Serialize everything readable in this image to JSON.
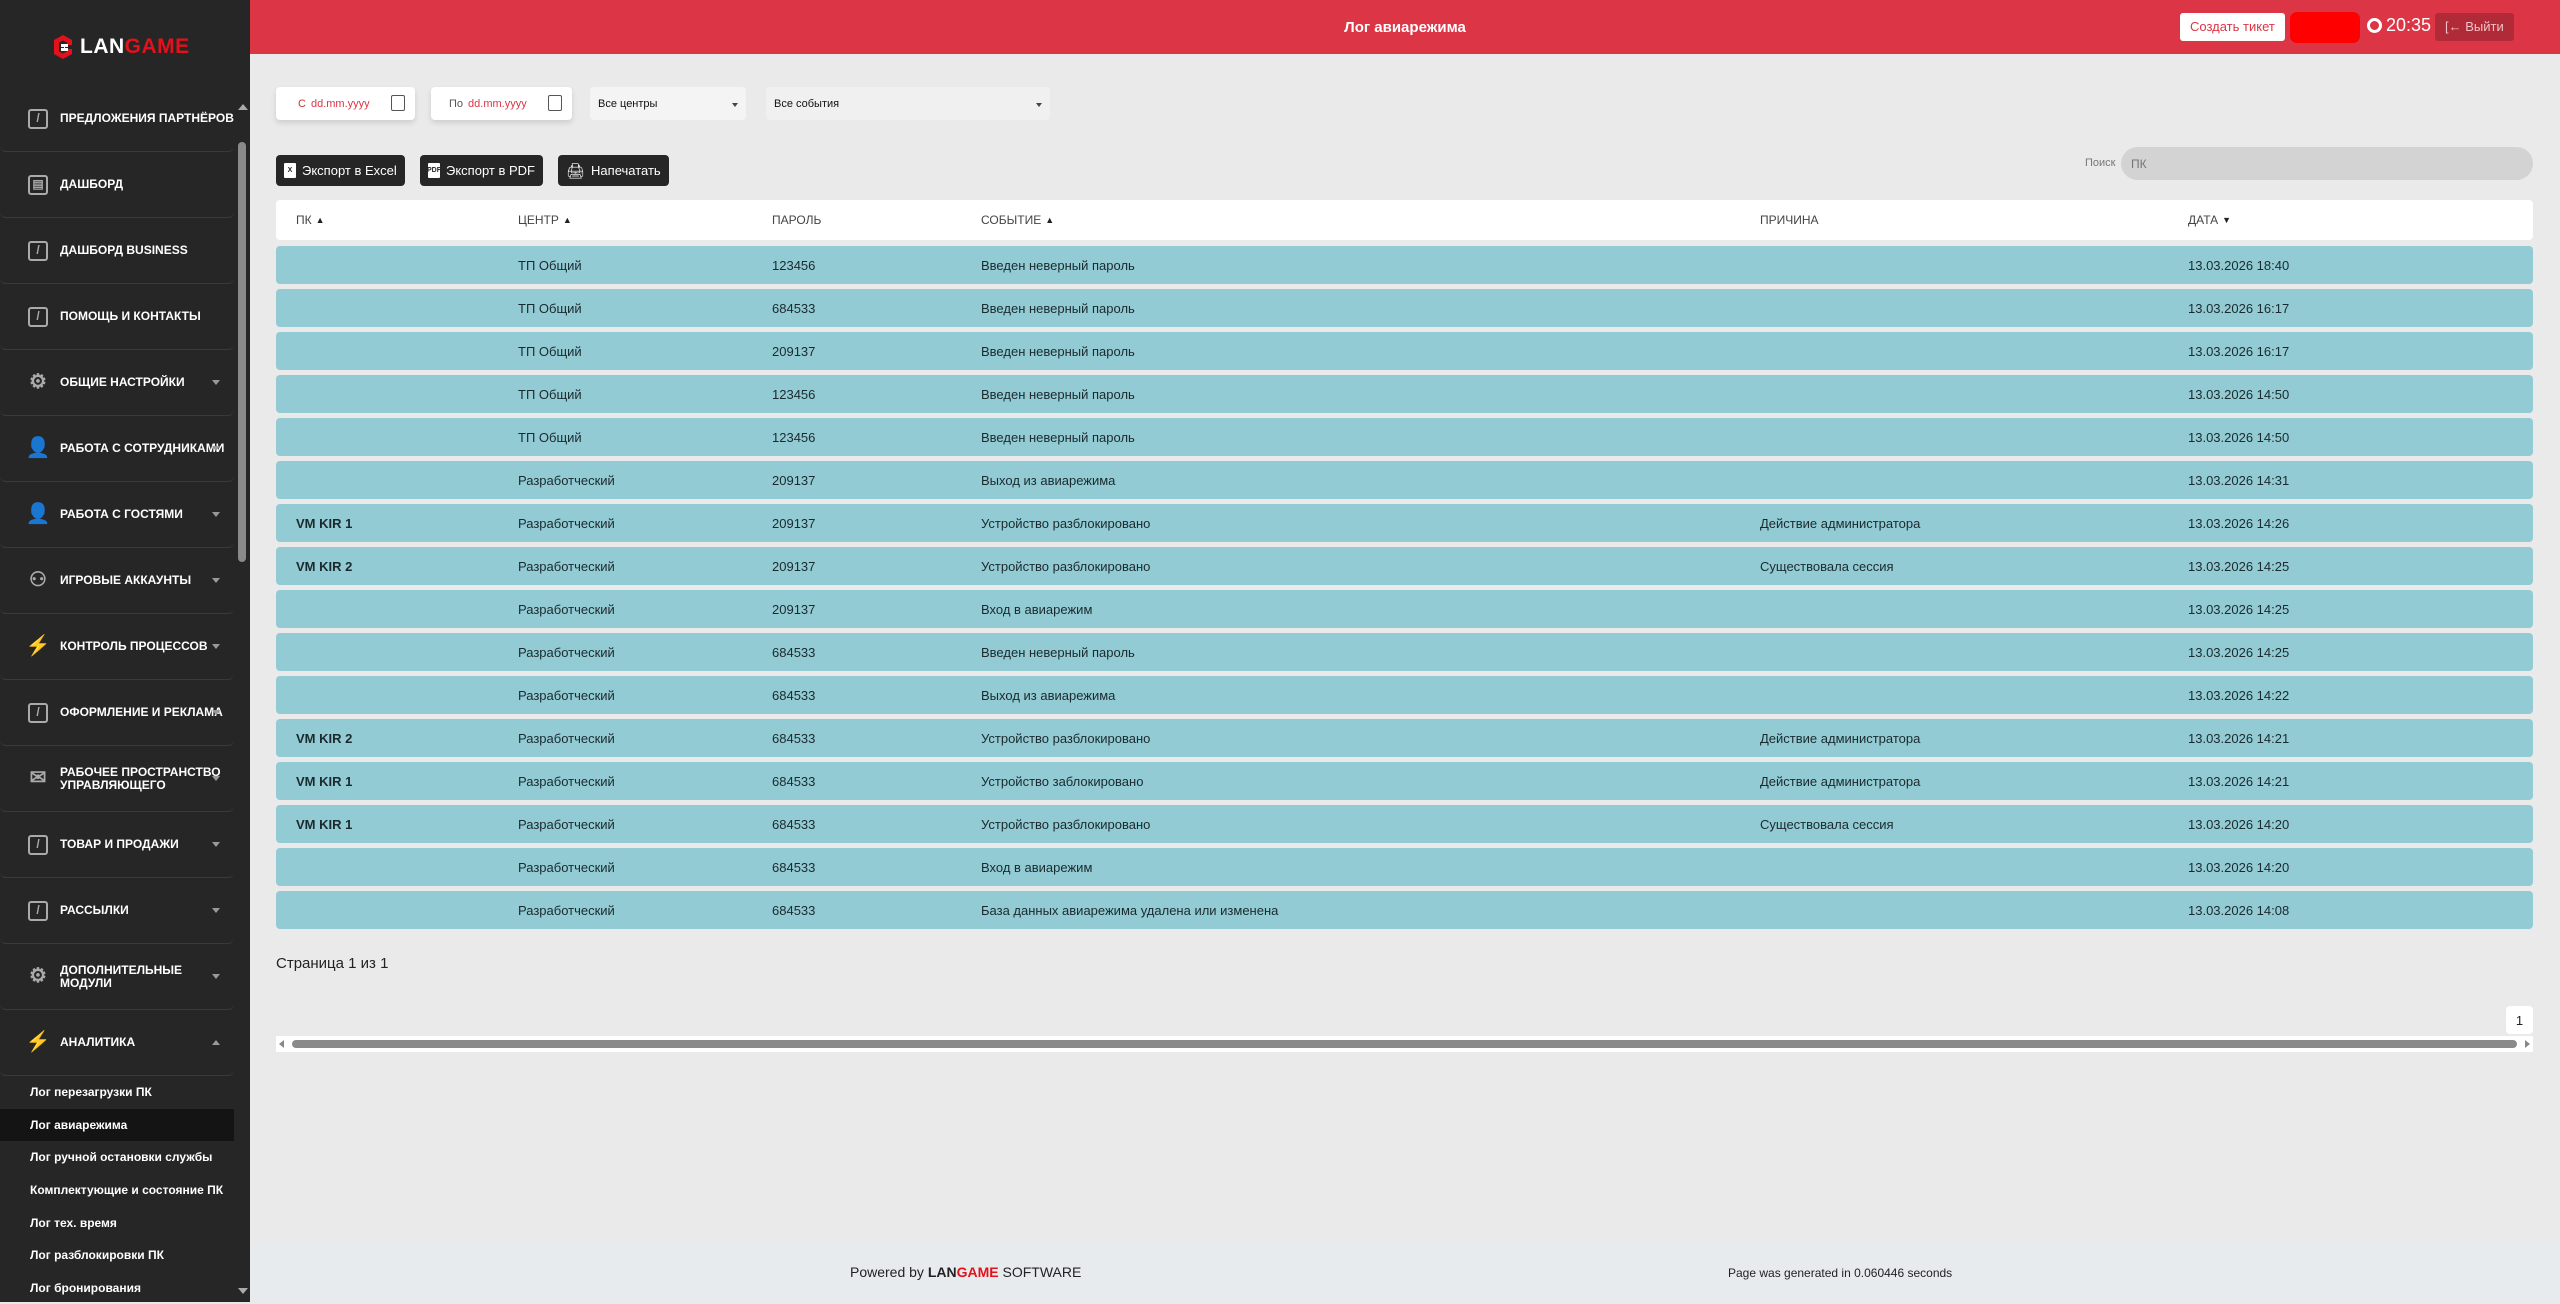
{
  "brand": {
    "logo_part1": "LAN",
    "logo_part2": "GAME"
  },
  "header": {
    "title": "Лог авиарежима",
    "create_ticket": "Создать тикет",
    "time": "20:35",
    "logout": "Выйти",
    "accent": "#dc3545"
  },
  "sidebar": {
    "items": [
      {
        "label": "Предложения партнёров",
        "icon": "edit-icon",
        "expandable": false
      },
      {
        "label": "Дашборд",
        "icon": "notebook-icon",
        "expandable": false
      },
      {
        "label": "Дашборд Business",
        "icon": "edit-icon",
        "expandable": false
      },
      {
        "label": "Помощь и контакты",
        "icon": "edit-icon",
        "expandable": false
      },
      {
        "label": "Общие настройки",
        "icon": "gear-icon",
        "expandable": true
      },
      {
        "label": "Работа с сотрудниками",
        "icon": "user-plus-icon",
        "expandable": true
      },
      {
        "label": "Работа с гостями",
        "icon": "user-plus-icon",
        "expandable": true
      },
      {
        "label": "Игровые аккаунты",
        "icon": "user-card-icon",
        "expandable": true
      },
      {
        "label": "Контроль процессов",
        "icon": "bolt-icon",
        "expandable": true
      },
      {
        "label": "Оформление и реклама",
        "icon": "edit-icon",
        "expandable": true
      },
      {
        "label": "Рабочее пространство управляющего",
        "icon": "inbox-icon",
        "expandable": true
      },
      {
        "label": "Товар и продажи",
        "icon": "edit-icon",
        "expandable": true
      },
      {
        "label": "Рассылки",
        "icon": "edit-icon",
        "expandable": true
      },
      {
        "label": "Дополнительные модули",
        "icon": "gear-icon",
        "expandable": true
      },
      {
        "label": "Аналитика",
        "icon": "bolt-icon",
        "expandable": true,
        "expanded": true
      }
    ],
    "subitems": [
      "Лог перезагрузки ПК",
      "Лог авиарежима",
      "Лог ручной остановки службы",
      "Комплектующие и состояние ПК",
      "Лог тех. время",
      "Лог разблокировки ПК",
      "Лог бронирования"
    ],
    "active_subitem": "Лог авиарежима"
  },
  "filters": {
    "from_prefix": "С",
    "to_prefix": "По",
    "date_placeholder": "dd.mm.yyyy",
    "center": "Все центры",
    "event": "Все события"
  },
  "toolbar": {
    "excel": "Экспорт в Excel",
    "pdf": "Экспорт в PDF",
    "print": "Напечатать",
    "search_label": "Поиск",
    "search_placeholder": "ПК"
  },
  "table": {
    "columns": [
      "ПК",
      "ЦЕНТР",
      "ПАРОЛЬ",
      "СОБЫТИЕ",
      "ПРИЧИНА",
      "ДАТА"
    ],
    "rows": [
      [
        "",
        "ТП Общий",
        "123456",
        "Введен неверный пароль",
        "",
        "13.03.2026 18:40"
      ],
      [
        "",
        "ТП Общий",
        "684533",
        "Введен неверный пароль",
        "",
        "13.03.2026 16:17"
      ],
      [
        "",
        "ТП Общий",
        "209137",
        "Введен неверный пароль",
        "",
        "13.03.2026 16:17"
      ],
      [
        "",
        "ТП Общий",
        "123456",
        "Введен неверный пароль",
        "",
        "13.03.2026 14:50"
      ],
      [
        "",
        "ТП Общий",
        "123456",
        "Введен неверный пароль",
        "",
        "13.03.2026 14:50"
      ],
      [
        "",
        "Разработческий",
        "209137",
        "Выход из авиарежима",
        "",
        "13.03.2026 14:31"
      ],
      [
        "VM KIR 1",
        "Разработческий",
        "209137",
        "Устройство разблокировано",
        "Действие администратора",
        "13.03.2026 14:26"
      ],
      [
        "VM KIR 2",
        "Разработческий",
        "209137",
        "Устройство разблокировано",
        "Существовала сессия",
        "13.03.2026 14:25"
      ],
      [
        "",
        "Разработческий",
        "209137",
        "Вход в авиарежим",
        "",
        "13.03.2026 14:25"
      ],
      [
        "",
        "Разработческий",
        "684533",
        "Введен неверный пароль",
        "",
        "13.03.2026 14:25"
      ],
      [
        "",
        "Разработческий",
        "684533",
        "Выход из авиарежима",
        "",
        "13.03.2026 14:22"
      ],
      [
        "VM KIR 2",
        "Разработческий",
        "684533",
        "Устройство разблокировано",
        "Действие администратора",
        "13.03.2026 14:21"
      ],
      [
        "VM KIR 1",
        "Разработческий",
        "684533",
        "Устройство заблокировано",
        "Действие администратора",
        "13.03.2026 14:21"
      ],
      [
        "VM KIR 1",
        "Разработческий",
        "684533",
        "Устройство разблокировано",
        "Существовала сессия",
        "13.03.2026 14:20"
      ],
      [
        "",
        "Разработческий",
        "684533",
        "Вход в авиарежим",
        "",
        "13.03.2026 14:20"
      ],
      [
        "",
        "Разработческий",
        "684533",
        "База данных авиарежима удалена или изменена",
        "",
        "13.03.2026 14:08"
      ]
    ],
    "row_color": "#92cbd4"
  },
  "pagination": {
    "info": "Страница 1 из 1",
    "current": "1"
  },
  "footer": {
    "powered": "Powered by",
    "brand1": "LAN",
    "brand2": "GAME",
    "software": "SOFTWARE",
    "generated": "Page was generated in 0.060446 seconds"
  }
}
